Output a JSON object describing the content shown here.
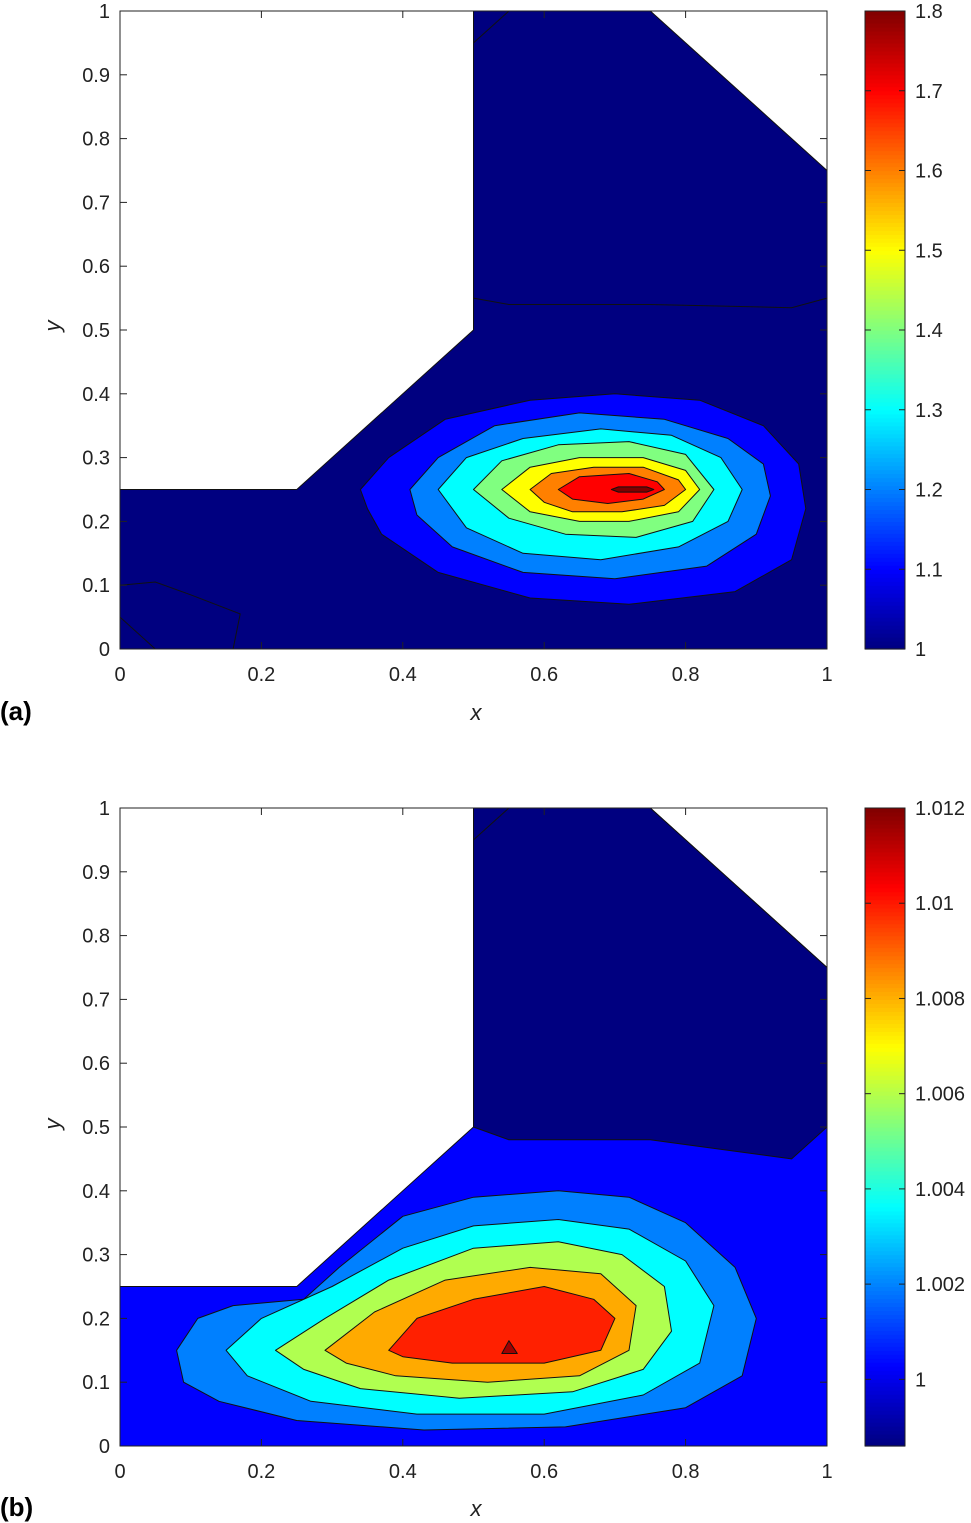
{
  "chart_data": [
    {
      "type": "contour",
      "panel_label": "(a)",
      "xlabel": "x",
      "ylabel": "y",
      "xlim": [
        0,
        1
      ],
      "ylim": [
        0,
        1
      ],
      "xticks": [
        "0",
        "0.2",
        "0.4",
        "0.6",
        "0.8",
        "1"
      ],
      "yticks": [
        "0",
        "0.1",
        "0.2",
        "0.3",
        "0.4",
        "0.5",
        "0.6",
        "0.7",
        "0.8",
        "0.9",
        "1"
      ],
      "colorbar": {
        "min": 1,
        "max": 1.8,
        "ticks": [
          "1",
          "1.1",
          "1.2",
          "1.3",
          "1.4",
          "1.5",
          "1.6",
          "1.7",
          "1.8"
        ]
      },
      "colormap": "jet",
      "domain": [
        [
          0,
          0
        ],
        [
          1,
          0
        ],
        [
          1,
          0.75
        ],
        [
          0.75,
          1
        ],
        [
          0.5,
          1
        ],
        [
          0.5,
          0.5
        ],
        [
          0.25,
          0.25
        ],
        [
          0,
          0.25
        ]
      ],
      "peak": {
        "x": 0.72,
        "y": 0.25,
        "value": 1.78
      },
      "levels": [
        {
          "value": 1.0,
          "color": "#000080",
          "polygon": [
            [
              0,
              0
            ],
            [
              1,
              0
            ],
            [
              1,
              0.75
            ],
            [
              0.75,
              1
            ],
            [
              0.5,
              1
            ],
            [
              0.5,
              0.5
            ],
            [
              0.25,
              0.25
            ],
            [
              0,
              0.25
            ]
          ]
        },
        {
          "value": 1.1,
          "color": "#0000ff",
          "polygon": [
            [
              0.34,
              0.25
            ],
            [
              0.38,
              0.3
            ],
            [
              0.46,
              0.36
            ],
            [
              0.58,
              0.39
            ],
            [
              0.7,
              0.4
            ],
            [
              0.82,
              0.39
            ],
            [
              0.91,
              0.35
            ],
            [
              0.96,
              0.29
            ],
            [
              0.97,
              0.22
            ],
            [
              0.95,
              0.14
            ],
            [
              0.87,
              0.09
            ],
            [
              0.72,
              0.07
            ],
            [
              0.58,
              0.08
            ],
            [
              0.45,
              0.12
            ],
            [
              0.37,
              0.18
            ],
            [
              0.35,
              0.22
            ]
          ]
        },
        {
          "value": 1.2,
          "color": "#0080ff",
          "polygon": [
            [
              0.41,
              0.25
            ],
            [
              0.45,
              0.3
            ],
            [
              0.53,
              0.35
            ],
            [
              0.65,
              0.37
            ],
            [
              0.77,
              0.36
            ],
            [
              0.86,
              0.33
            ],
            [
              0.91,
              0.29
            ],
            [
              0.92,
              0.24
            ],
            [
              0.9,
              0.18
            ],
            [
              0.83,
              0.13
            ],
            [
              0.7,
              0.11
            ],
            [
              0.57,
              0.12
            ],
            [
              0.47,
              0.16
            ],
            [
              0.42,
              0.21
            ]
          ]
        },
        {
          "value": 1.3,
          "color": "#00ffff",
          "polygon": [
            [
              0.45,
              0.25
            ],
            [
              0.49,
              0.3
            ],
            [
              0.57,
              0.33
            ],
            [
              0.68,
              0.345
            ],
            [
              0.78,
              0.335
            ],
            [
              0.85,
              0.3
            ],
            [
              0.88,
              0.25
            ],
            [
              0.86,
              0.2
            ],
            [
              0.79,
              0.16
            ],
            [
              0.68,
              0.14
            ],
            [
              0.57,
              0.15
            ],
            [
              0.49,
              0.19
            ]
          ]
        },
        {
          "value": 1.4,
          "color": "#80ff80",
          "polygon": [
            [
              0.5,
              0.25
            ],
            [
              0.54,
              0.295
            ],
            [
              0.62,
              0.32
            ],
            [
              0.72,
              0.325
            ],
            [
              0.8,
              0.305
            ],
            [
              0.84,
              0.25
            ],
            [
              0.81,
              0.2
            ],
            [
              0.73,
              0.175
            ],
            [
              0.63,
              0.18
            ],
            [
              0.55,
              0.205
            ]
          ]
        },
        {
          "value": 1.5,
          "color": "#ffff00",
          "polygon": [
            [
              0.54,
              0.25
            ],
            [
              0.58,
              0.285
            ],
            [
              0.65,
              0.3
            ],
            [
              0.74,
              0.3
            ],
            [
              0.8,
              0.28
            ],
            [
              0.82,
              0.25
            ],
            [
              0.79,
              0.215
            ],
            [
              0.72,
              0.2
            ],
            [
              0.65,
              0.2
            ],
            [
              0.58,
              0.215
            ]
          ]
        },
        {
          "value": 1.6,
          "color": "#ff8000",
          "polygon": [
            [
              0.58,
              0.25
            ],
            [
              0.61,
              0.275
            ],
            [
              0.67,
              0.285
            ],
            [
              0.74,
              0.285
            ],
            [
              0.79,
              0.265
            ],
            [
              0.8,
              0.25
            ],
            [
              0.77,
              0.225
            ],
            [
              0.71,
              0.215
            ],
            [
              0.64,
              0.215
            ],
            [
              0.6,
              0.23
            ]
          ]
        },
        {
          "value": 1.7,
          "color": "#ff0000",
          "polygon": [
            [
              0.62,
              0.25
            ],
            [
              0.65,
              0.27
            ],
            [
              0.72,
              0.275
            ],
            [
              0.76,
              0.262
            ],
            [
              0.77,
              0.25
            ],
            [
              0.74,
              0.235
            ],
            [
              0.69,
              0.228
            ],
            [
              0.64,
              0.235
            ]
          ]
        },
        {
          "value": 1.78,
          "color": "#800000",
          "polygon": [
            [
              0.695,
              0.25
            ],
            [
              0.705,
              0.254
            ],
            [
              0.745,
              0.254
            ],
            [
              0.755,
              0.25
            ],
            [
              0.745,
              0.246
            ],
            [
              0.705,
              0.246
            ]
          ]
        }
      ],
      "extra_contours": [
        [
          [
            0,
            0.1
          ],
          [
            0.05,
            0.105
          ],
          [
            0.1,
            0.085
          ],
          [
            0.17,
            0.055
          ],
          [
            0.16,
            0
          ]
        ],
        [
          [
            0,
            0.05
          ],
          [
            0.05,
            0
          ]
        ],
        [
          [
            0.5,
            0.55
          ],
          [
            0.55,
            0.54
          ],
          [
            0.75,
            0.54
          ],
          [
            0.95,
            0.535
          ],
          [
            1,
            0.55
          ]
        ],
        [
          [
            0.5,
            0.95
          ],
          [
            0.55,
            1
          ]
        ]
      ]
    },
    {
      "type": "contour",
      "panel_label": "(b)",
      "xlabel": "x",
      "ylabel": "y",
      "xlim": [
        0,
        1
      ],
      "ylim": [
        0,
        1
      ],
      "xticks": [
        "0",
        "0.2",
        "0.4",
        "0.6",
        "0.8",
        "1"
      ],
      "yticks": [
        "0",
        "0.1",
        "0.2",
        "0.3",
        "0.4",
        "0.5",
        "0.6",
        "0.7",
        "0.8",
        "0.9",
        "1"
      ],
      "colorbar": {
        "min": 0.9986,
        "max": 1.012,
        "ticks": [
          "1",
          "1.002",
          "1.004",
          "1.006",
          "1.008",
          "1.01",
          "1.012"
        ]
      },
      "colormap": "jet",
      "domain": [
        [
          0,
          0
        ],
        [
          1,
          0
        ],
        [
          1,
          0.75
        ],
        [
          0.75,
          1
        ],
        [
          0.5,
          1
        ],
        [
          0.5,
          0.5
        ],
        [
          0.25,
          0.25
        ],
        [
          0,
          0.25
        ]
      ],
      "peak": {
        "x": 0.55,
        "y": 0.16,
        "value": 1.0115
      },
      "levels": [
        {
          "value": 1.0,
          "color": "#0000ff",
          "polygon": [
            [
              0,
              0
            ],
            [
              1,
              0
            ],
            [
              1,
              0.75
            ],
            [
              0.75,
              1
            ],
            [
              0.5,
              1
            ],
            [
              0.5,
              0.5
            ],
            [
              0.25,
              0.25
            ],
            [
              0,
              0.25
            ]
          ]
        },
        {
          "value": 0.9995,
          "color": "#000080",
          "polygon": [
            [
              0.5,
              1
            ],
            [
              0.75,
              1
            ],
            [
              1,
              0.75
            ],
            [
              1,
              0.5
            ],
            [
              0.95,
              0.45
            ],
            [
              0.75,
              0.48
            ],
            [
              0.55,
              0.48
            ],
            [
              0.5,
              0.5
            ]
          ]
        },
        {
          "value": 0.9995,
          "color": "#000080",
          "polygon": [
            [
              0.5,
              1
            ],
            [
              0.5,
              0.95
            ],
            [
              0.55,
              1
            ]
          ]
        },
        {
          "value": 1.001,
          "color": "#0080ff",
          "polygon": [
            [
              0.08,
              0.15
            ],
            [
              0.11,
              0.2
            ],
            [
              0.16,
              0.22
            ],
            [
              0.26,
              0.23
            ],
            [
              0.31,
              0.28
            ],
            [
              0.4,
              0.36
            ],
            [
              0.5,
              0.39
            ],
            [
              0.62,
              0.4
            ],
            [
              0.72,
              0.39
            ],
            [
              0.8,
              0.35
            ],
            [
              0.87,
              0.28
            ],
            [
              0.9,
              0.2
            ],
            [
              0.88,
              0.11
            ],
            [
              0.8,
              0.06
            ],
            [
              0.63,
              0.03
            ],
            [
              0.43,
              0.025
            ],
            [
              0.25,
              0.04
            ],
            [
              0.14,
              0.07
            ],
            [
              0.09,
              0.1
            ]
          ]
        },
        {
          "value": 1.003,
          "color": "#00ffff",
          "polygon": [
            [
              0.15,
              0.15
            ],
            [
              0.2,
              0.2
            ],
            [
              0.3,
              0.25
            ],
            [
              0.4,
              0.31
            ],
            [
              0.5,
              0.345
            ],
            [
              0.62,
              0.355
            ],
            [
              0.72,
              0.34
            ],
            [
              0.8,
              0.29
            ],
            [
              0.84,
              0.22
            ],
            [
              0.82,
              0.13
            ],
            [
              0.74,
              0.08
            ],
            [
              0.6,
              0.05
            ],
            [
              0.42,
              0.05
            ],
            [
              0.27,
              0.07
            ],
            [
              0.18,
              0.11
            ]
          ]
        },
        {
          "value": 1.005,
          "color": "#b0ff50",
          "polygon": [
            [
              0.22,
              0.15
            ],
            [
              0.29,
              0.2
            ],
            [
              0.38,
              0.26
            ],
            [
              0.5,
              0.31
            ],
            [
              0.62,
              0.32
            ],
            [
              0.71,
              0.3
            ],
            [
              0.77,
              0.25
            ],
            [
              0.78,
              0.18
            ],
            [
              0.74,
              0.12
            ],
            [
              0.64,
              0.085
            ],
            [
              0.48,
              0.075
            ],
            [
              0.34,
              0.09
            ],
            [
              0.26,
              0.12
            ]
          ]
        },
        {
          "value": 1.007,
          "color": "#ffaa00",
          "polygon": [
            [
              0.29,
              0.15
            ],
            [
              0.36,
              0.21
            ],
            [
              0.46,
              0.26
            ],
            [
              0.58,
              0.28
            ],
            [
              0.68,
              0.27
            ],
            [
              0.73,
              0.22
            ],
            [
              0.72,
              0.15
            ],
            [
              0.65,
              0.11
            ],
            [
              0.52,
              0.1
            ],
            [
              0.39,
              0.11
            ],
            [
              0.32,
              0.13
            ]
          ]
        },
        {
          "value": 1.009,
          "color": "#ff2000",
          "polygon": [
            [
              0.38,
              0.15
            ],
            [
              0.42,
              0.2
            ],
            [
              0.5,
              0.23
            ],
            [
              0.6,
              0.25
            ],
            [
              0.67,
              0.23
            ],
            [
              0.7,
              0.2
            ],
            [
              0.68,
              0.15
            ],
            [
              0.6,
              0.13
            ],
            [
              0.47,
              0.13
            ],
            [
              0.4,
              0.14
            ]
          ]
        },
        {
          "value": 1.0115,
          "color": "#a00000",
          "polygon": [
            [
              0.54,
              0.145
            ],
            [
              0.55,
              0.165
            ],
            [
              0.562,
              0.145
            ]
          ]
        }
      ],
      "extra_contours": [
        [
          [
            0,
            0.25
          ],
          [
            0.25,
            0.25
          ]
        ]
      ]
    }
  ]
}
